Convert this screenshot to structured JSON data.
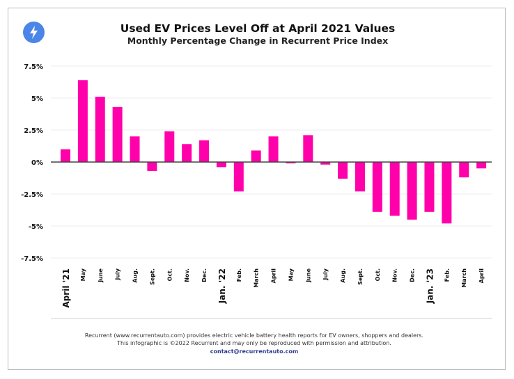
{
  "header": {
    "title": "Used EV Prices Level Off at April 2021 Values",
    "subtitle": "Monthly Percentage Change in Recurrent Price Index",
    "logo_icon": "lightning-bolt-icon"
  },
  "chart_data": {
    "type": "bar",
    "title": "Used EV Prices Level Off at April 2021 Values",
    "subtitle": "Monthly Percentage Change in Recurrent Price Index",
    "categories": [
      "April '21",
      "May",
      "June",
      "July",
      "Aug.",
      "Sept.",
      "Oct.",
      "Nov.",
      "Dec.",
      "Jan. '22",
      "Feb.",
      "March",
      "April",
      "May",
      "June",
      "July",
      "Aug.",
      "Sept.",
      "Oct.",
      "Nov.",
      "Dec.",
      "Jan. '23",
      "Feb.",
      "March",
      "April"
    ],
    "emphasized_categories": [
      "April '21",
      "Jan. '22",
      "Jan. '23"
    ],
    "values": [
      1.0,
      6.4,
      5.1,
      4.3,
      2.0,
      -0.7,
      2.4,
      1.4,
      1.7,
      -0.4,
      -2.3,
      0.9,
      2.0,
      -0.1,
      2.1,
      -0.2,
      -1.3,
      -2.3,
      -3.9,
      -4.2,
      -4.5,
      -3.9,
      -4.8,
      -1.2,
      -0.5
    ],
    "ylim": [
      -7.5,
      7.5
    ],
    "yticks": [
      7.5,
      5,
      2.5,
      0,
      -2.5,
      -5,
      -7.5
    ],
    "ytick_labels": [
      "7.5%",
      "5%",
      "2.5%",
      "0%",
      "-2.5%",
      "-5%",
      "-7.5%"
    ],
    "xlabel": "",
    "ylabel": "",
    "grid": true,
    "bar_color": "#ff00aa"
  },
  "footer": {
    "line1": "Recurrent (www.recurrentauto.com) provides electric vehicle battery health reports for EV owners, shoppers and dealers.",
    "line2": "This infographic is ©2022 Recurrent and may only be reproduced with permission and attribution.",
    "contact": "contact@recurrentauto.com"
  }
}
